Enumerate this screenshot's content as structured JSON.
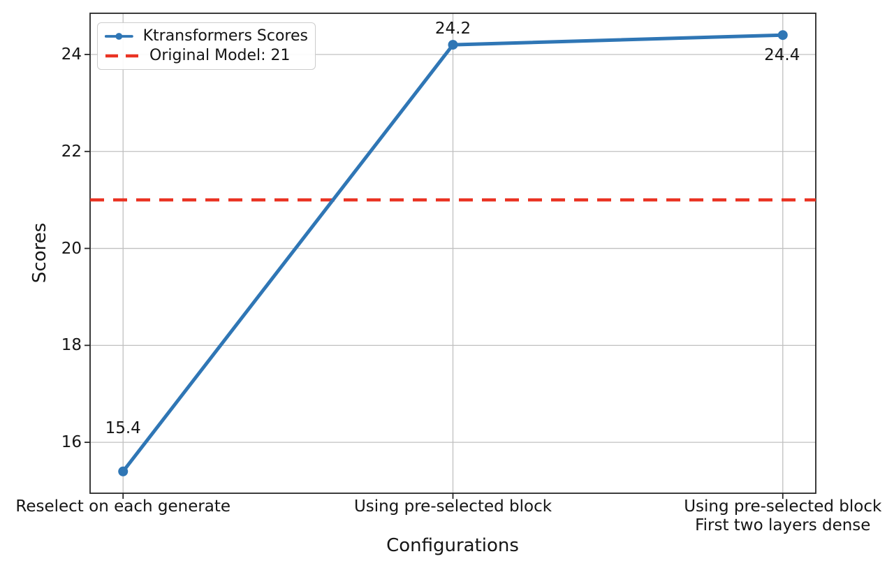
{
  "chart_data": {
    "type": "line",
    "title": "",
    "xlabel": "Configurations",
    "ylabel": "Scores",
    "categories": [
      [
        "Reselect on each generate"
      ],
      [
        "Using pre-selected block"
      ],
      [
        "Using pre-selected block",
        "First two layers dense"
      ]
    ],
    "x": [
      0,
      1,
      2
    ],
    "xlim": [
      -0.1,
      2.1
    ],
    "ylim": [
      14.95,
      24.85
    ],
    "yticks": [
      16,
      18,
      20,
      22,
      24
    ],
    "grid": true,
    "legend_position": "upper-left",
    "series": [
      {
        "name": "Ktransformers Scores",
        "values": [
          15.4,
          24.2,
          24.4
        ],
        "point_labels": [
          "15.4",
          "24.2",
          "24.4"
        ],
        "color": "#2f76b5",
        "style": "solid-line-with-markers"
      }
    ],
    "reference_line": {
      "label": "Original Model: 21",
      "value": 21,
      "color": "#ea3323",
      "style": "dashed"
    }
  },
  "legend": {
    "entry_series": "Ktransformers Scores",
    "entry_reference": "Original Model: 21"
  },
  "icons": {
    "series_handle": "line-with-dot-marker-icon",
    "reference_handle": "dashed-line-icon"
  },
  "colors": {
    "blue": "#2f76b5",
    "red": "#ea3323",
    "grid": "#c0c0c0",
    "spine": "#262626",
    "text": "#151515"
  }
}
